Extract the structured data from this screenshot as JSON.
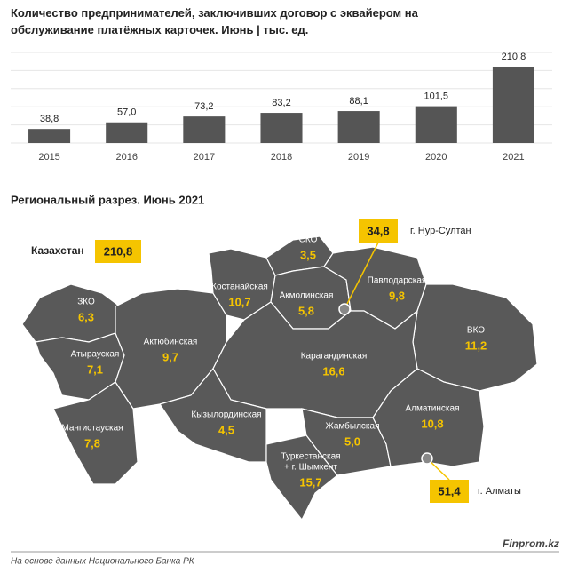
{
  "chart_data": {
    "type": "bar",
    "title": "Количество предпринимателей, заключивших договор с эквайером на обслуживание платёжных карточек. Июнь | тыс. ед.",
    "categories": [
      "2015",
      "2016",
      "2017",
      "2018",
      "2019",
      "2020",
      "2021"
    ],
    "values": [
      38.8,
      57.0,
      73.2,
      83.2,
      88.1,
      101.5,
      210.8
    ],
    "value_labels": [
      "38,8",
      "57,0",
      "73,2",
      "83,2",
      "88,1",
      "101,5",
      "210,8"
    ],
    "color": "#555555",
    "ylim": [
      0,
      250
    ],
    "yticks": [
      0,
      50,
      100,
      150,
      200,
      250
    ],
    "grid": true
  },
  "map": {
    "title": "Региональный разрез. Июнь 2021",
    "total": {
      "name": "Казахстан",
      "value": 210.8,
      "value_label": "210,8"
    },
    "regions": [
      {
        "name": "ЗКО",
        "value": 6.3,
        "value_label": "6,3"
      },
      {
        "name": "Атырауская",
        "value": 7.1,
        "value_label": "7,1"
      },
      {
        "name": "Мангистауская",
        "value": 7.8,
        "value_label": "7,8"
      },
      {
        "name": "Актюбинская",
        "value": 9.7,
        "value_label": "9,7"
      },
      {
        "name": "Костанайская",
        "value": 10.7,
        "value_label": "10,7"
      },
      {
        "name": "СКО",
        "value": 3.5,
        "value_label": "3,5"
      },
      {
        "name": "Акмолинская",
        "value": 5.8,
        "value_label": "5,8"
      },
      {
        "name": "Павлодарская",
        "value": 9.8,
        "value_label": "9,8"
      },
      {
        "name": "ВКО",
        "value": 11.2,
        "value_label": "11,2"
      },
      {
        "name": "Карагандинская",
        "value": 16.6,
        "value_label": "16,6"
      },
      {
        "name": "Кызылординская",
        "value": 4.5,
        "value_label": "4,5"
      },
      {
        "name": "Жамбылская",
        "value": 5.0,
        "value_label": "5,0"
      },
      {
        "name": "Алматинская",
        "value": 10.8,
        "value_label": "10,8"
      },
      {
        "name": [
          "Туркестанская",
          "+ г. Шымкент"
        ],
        "value": 15.7,
        "value_label": "15,7"
      }
    ],
    "cities": [
      {
        "name": "г. Нур-Султан",
        "value": 34.8,
        "value_label": "34,8"
      },
      {
        "name": "г. Алматы",
        "value": 51.4,
        "value_label": "51,4"
      }
    ]
  },
  "footer": {
    "source": "На основе данных Национального Банка РК",
    "brand": "Finprom.kz"
  }
}
